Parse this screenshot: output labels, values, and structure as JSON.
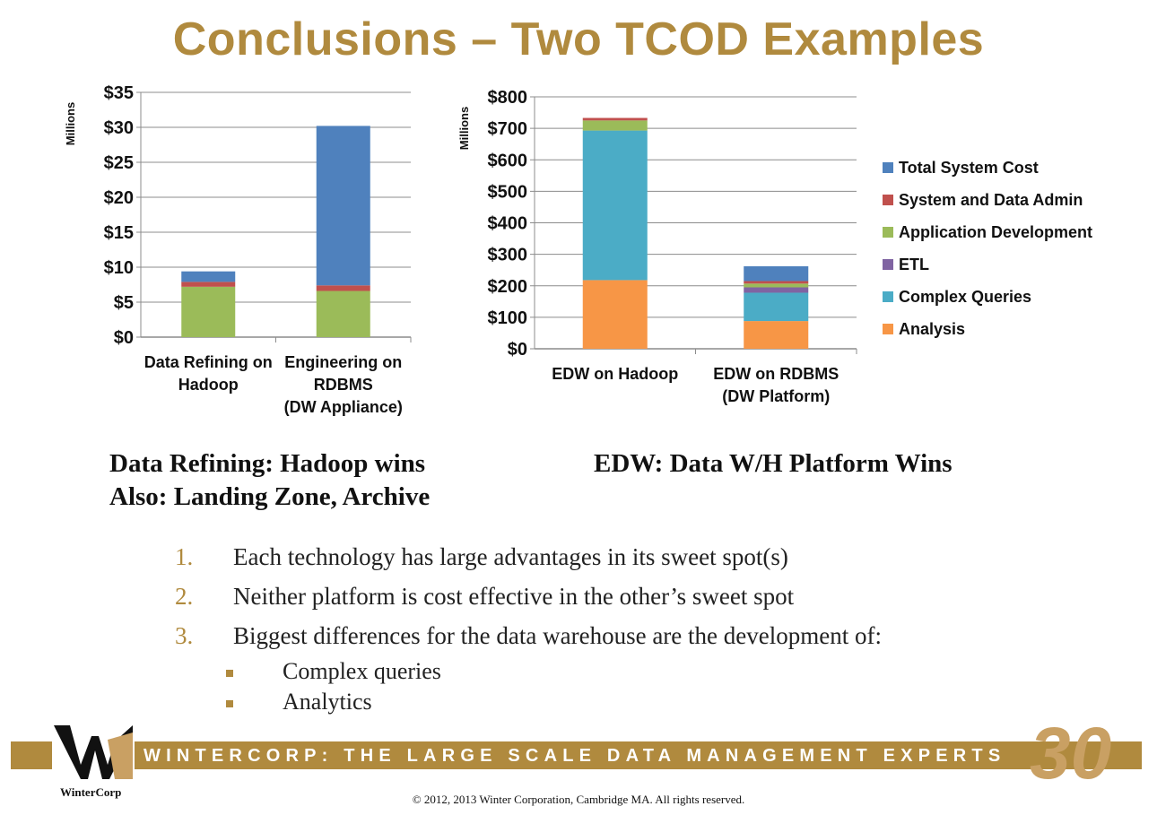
{
  "slide": {
    "title": "Conclusions – Two TCOD Examples",
    "caption_left_line1": "Data Refining: Hadoop wins",
    "caption_left_line2": "Also: Landing Zone, Archive",
    "caption_right": "EDW:  Data W/H Platform Wins",
    "points": [
      {
        "num": "1.",
        "text": "Each technology has large advantages in its sweet spot(s)"
      },
      {
        "num": "2.",
        "text": "Neither platform is cost effective in the other’s sweet spot"
      },
      {
        "num": "3.",
        "text": "Biggest differences for the data warehouse are the development of:"
      }
    ],
    "subpoints": [
      "Complex queries",
      "Analytics"
    ],
    "banner": "WINTERCORP: THE LARGE SCALE DATA MANAGEMENT EXPERTS",
    "page_number": "30",
    "copyright": "© 2012, 2013  Winter Corporation, Cambridge MA.  All rights reserved.",
    "logo_text": "WinterCorp",
    "logo_mark": "W"
  },
  "colors": {
    "total_system_cost": "#4F81BD",
    "system_data_admin": "#C0504D",
    "application_development": "#9BBB59",
    "etl": "#8064A2",
    "complex_queries": "#4BACC6",
    "analysis": "#F79646",
    "accent": "#B08A3E"
  },
  "chart_data": [
    {
      "type": "bar",
      "stacked": true,
      "ylabel": "Millions",
      "ylim": [
        0,
        35
      ],
      "yticks": [
        "$0",
        "$5",
        "$10",
        "$15",
        "$20",
        "$25",
        "$30",
        "$35"
      ],
      "categories": [
        [
          "Data Refining on",
          "Hadoop"
        ],
        [
          "Engineering on",
          "RDBMS",
          "(DW Appliance)"
        ]
      ],
      "series": [
        {
          "key": "application_development",
          "values": [
            7.2,
            6.6
          ]
        },
        {
          "key": "system_data_admin",
          "values": [
            0.7,
            0.8
          ]
        },
        {
          "key": "total_system_cost",
          "values": [
            1.5,
            22.8
          ]
        }
      ]
    },
    {
      "type": "bar",
      "stacked": true,
      "ylabel": "Millions",
      "ylim": [
        0,
        800
      ],
      "yticks": [
        "$0",
        "$100",
        "$200",
        "$300",
        "$400",
        "$500",
        "$600",
        "$700",
        "$800"
      ],
      "categories": [
        [
          "EDW on Hadoop"
        ],
        [
          "EDW on RDBMS",
          "(DW Platform)"
        ]
      ],
      "series": [
        {
          "key": "analysis",
          "name": "Analysis",
          "values": [
            218,
            88
          ]
        },
        {
          "key": "complex_queries",
          "name": "Complex Queries",
          "values": [
            475,
            90
          ]
        },
        {
          "key": "etl",
          "name": "ETL",
          "values": [
            0,
            17
          ]
        },
        {
          "key": "application_development",
          "name": "Application Development",
          "values": [
            32,
            12
          ]
        },
        {
          "key": "system_data_admin",
          "name": "System and Data Admin",
          "values": [
            8,
            8
          ]
        },
        {
          "key": "total_system_cost",
          "name": "Total System Cost",
          "values": [
            0,
            47
          ]
        }
      ],
      "legend": {
        "placement": "right",
        "order": [
          "total_system_cost",
          "system_data_admin",
          "application_development",
          "etl",
          "complex_queries",
          "analysis"
        ]
      }
    }
  ]
}
